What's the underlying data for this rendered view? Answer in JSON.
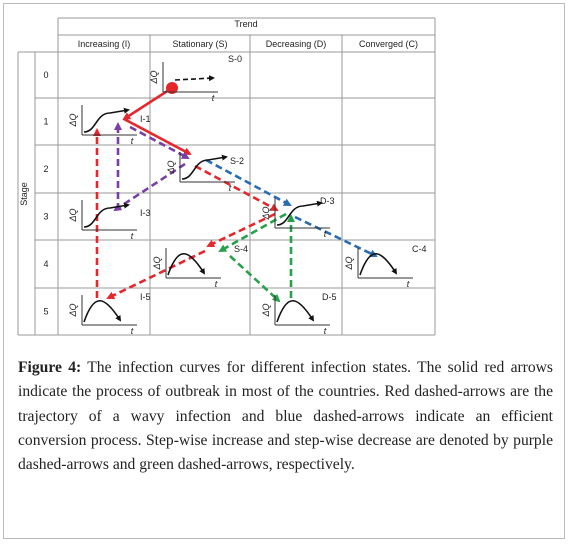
{
  "figure": {
    "header": "Trend",
    "columns": [
      "Increasing (I)",
      "Stationary (S)",
      "Decreasing (D)",
      "Converged (C)"
    ],
    "stage_label": "Stage",
    "stages": [
      "0",
      "1",
      "2",
      "3",
      "4",
      "5"
    ],
    "y_axis_label": "ΔQ",
    "x_axis_label": "t",
    "panels": [
      "S-0",
      "I-1",
      "S-2",
      "I-3",
      "D-3",
      "S-4",
      "C-4",
      "I-5",
      "D-5"
    ]
  },
  "caption": {
    "label": "Figure 4:",
    "text": "The infection curves for different infection states. The solid red arrows indicate the process of outbreak in most of the countries. Red dashed-arrows are the trajectory of a wavy infection and blue dashed-arrows indicate an efficient conversion process. Step-wise increase and step-wise decrease are denoted by purple dashed-arrows and green dashed-arrows, respectively."
  }
}
